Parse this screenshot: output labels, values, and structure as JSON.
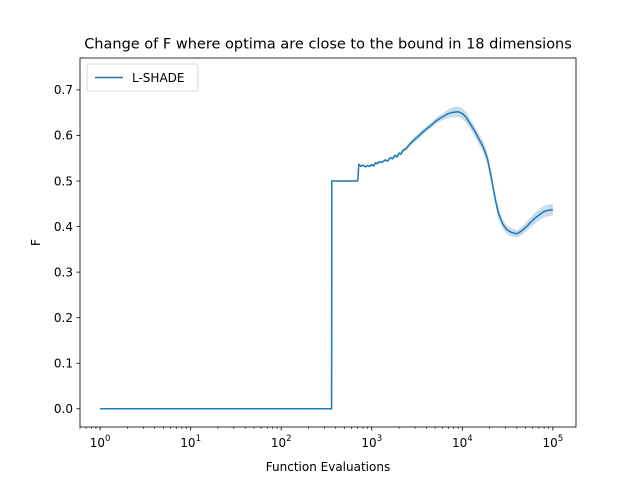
{
  "chart_data": {
    "type": "line",
    "title": "Change of F where optima are close to the bound in 18 dimensions",
    "xlabel": "Function Evaluations",
    "ylabel": "F",
    "xscale": "log",
    "xlim": [
      0.6,
      180000
    ],
    "ylim": [
      -0.04,
      0.77
    ],
    "x_ticks": [
      {
        "base": "10",
        "exp": "0",
        "value": 1
      },
      {
        "base": "10",
        "exp": "1",
        "value": 10
      },
      {
        "base": "10",
        "exp": "2",
        "value": 100
      },
      {
        "base": "10",
        "exp": "3",
        "value": 1000
      },
      {
        "base": "10",
        "exp": "4",
        "value": 10000
      },
      {
        "base": "10",
        "exp": "5",
        "value": 100000
      }
    ],
    "y_ticks": [
      "0.0",
      "0.1",
      "0.2",
      "0.3",
      "0.4",
      "0.5",
      "0.6",
      "0.7"
    ],
    "legend_position": "top-left",
    "grid": false,
    "series": [
      {
        "name": "L-SHADE",
        "color": "#1f77b4",
        "band_color": "#1f77b4",
        "x": [
          1,
          360,
          362,
          700,
          720,
          760,
          800,
          850,
          900,
          950,
          1000,
          1050,
          1100,
          1150,
          1200,
          1300,
          1400,
          1500,
          1600,
          1700,
          1800,
          1900,
          2000,
          2100,
          2200,
          2400,
          2600,
          2800,
          3000,
          3300,
          3600,
          4000,
          4500,
          5000,
          5600,
          6300,
          7000,
          8000,
          9000,
          10000,
          11000,
          12000,
          13500,
          15000,
          17000,
          19000,
          21000,
          23000,
          25000,
          28000,
          31000,
          35000,
          40000,
          45000,
          50000,
          56000,
          63000,
          70000,
          80000,
          90000,
          100000
        ],
        "y": [
          0.0,
          0.0,
          0.5,
          0.5,
          0.537,
          0.532,
          0.535,
          0.531,
          0.534,
          0.532,
          0.536,
          0.533,
          0.54,
          0.538,
          0.542,
          0.541,
          0.546,
          0.544,
          0.551,
          0.549,
          0.556,
          0.553,
          0.561,
          0.559,
          0.567,
          0.571,
          0.58,
          0.586,
          0.592,
          0.599,
          0.606,
          0.614,
          0.622,
          0.63,
          0.637,
          0.643,
          0.648,
          0.651,
          0.652,
          0.648,
          0.64,
          0.628,
          0.612,
          0.595,
          0.575,
          0.548,
          0.505,
          0.462,
          0.43,
          0.405,
          0.393,
          0.387,
          0.384,
          0.39,
          0.398,
          0.408,
          0.418,
          0.425,
          0.433,
          0.436,
          0.437
        ],
        "lower": [
          0.0,
          0.0,
          0.5,
          0.5,
          0.535,
          0.53,
          0.533,
          0.529,
          0.532,
          0.53,
          0.534,
          0.531,
          0.538,
          0.536,
          0.54,
          0.539,
          0.543,
          0.541,
          0.548,
          0.546,
          0.552,
          0.549,
          0.557,
          0.555,
          0.562,
          0.566,
          0.575,
          0.58,
          0.586,
          0.593,
          0.6,
          0.608,
          0.616,
          0.623,
          0.63,
          0.635,
          0.638,
          0.64,
          0.64,
          0.636,
          0.628,
          0.617,
          0.601,
          0.584,
          0.563,
          0.535,
          0.492,
          0.45,
          0.418,
          0.395,
          0.383,
          0.378,
          0.376,
          0.381,
          0.388,
          0.397,
          0.406,
          0.413,
          0.42,
          0.423,
          0.424
        ],
        "upper": [
          0.0,
          0.0,
          0.5,
          0.5,
          0.539,
          0.534,
          0.537,
          0.533,
          0.536,
          0.534,
          0.538,
          0.535,
          0.542,
          0.54,
          0.544,
          0.543,
          0.549,
          0.547,
          0.554,
          0.552,
          0.56,
          0.557,
          0.565,
          0.563,
          0.572,
          0.576,
          0.585,
          0.592,
          0.598,
          0.605,
          0.612,
          0.62,
          0.628,
          0.637,
          0.644,
          0.651,
          0.658,
          0.662,
          0.664,
          0.66,
          0.652,
          0.639,
          0.623,
          0.606,
          0.587,
          0.561,
          0.518,
          0.474,
          0.442,
          0.415,
          0.403,
          0.396,
          0.392,
          0.399,
          0.408,
          0.419,
          0.43,
          0.437,
          0.446,
          0.449,
          0.45
        ]
      }
    ]
  }
}
